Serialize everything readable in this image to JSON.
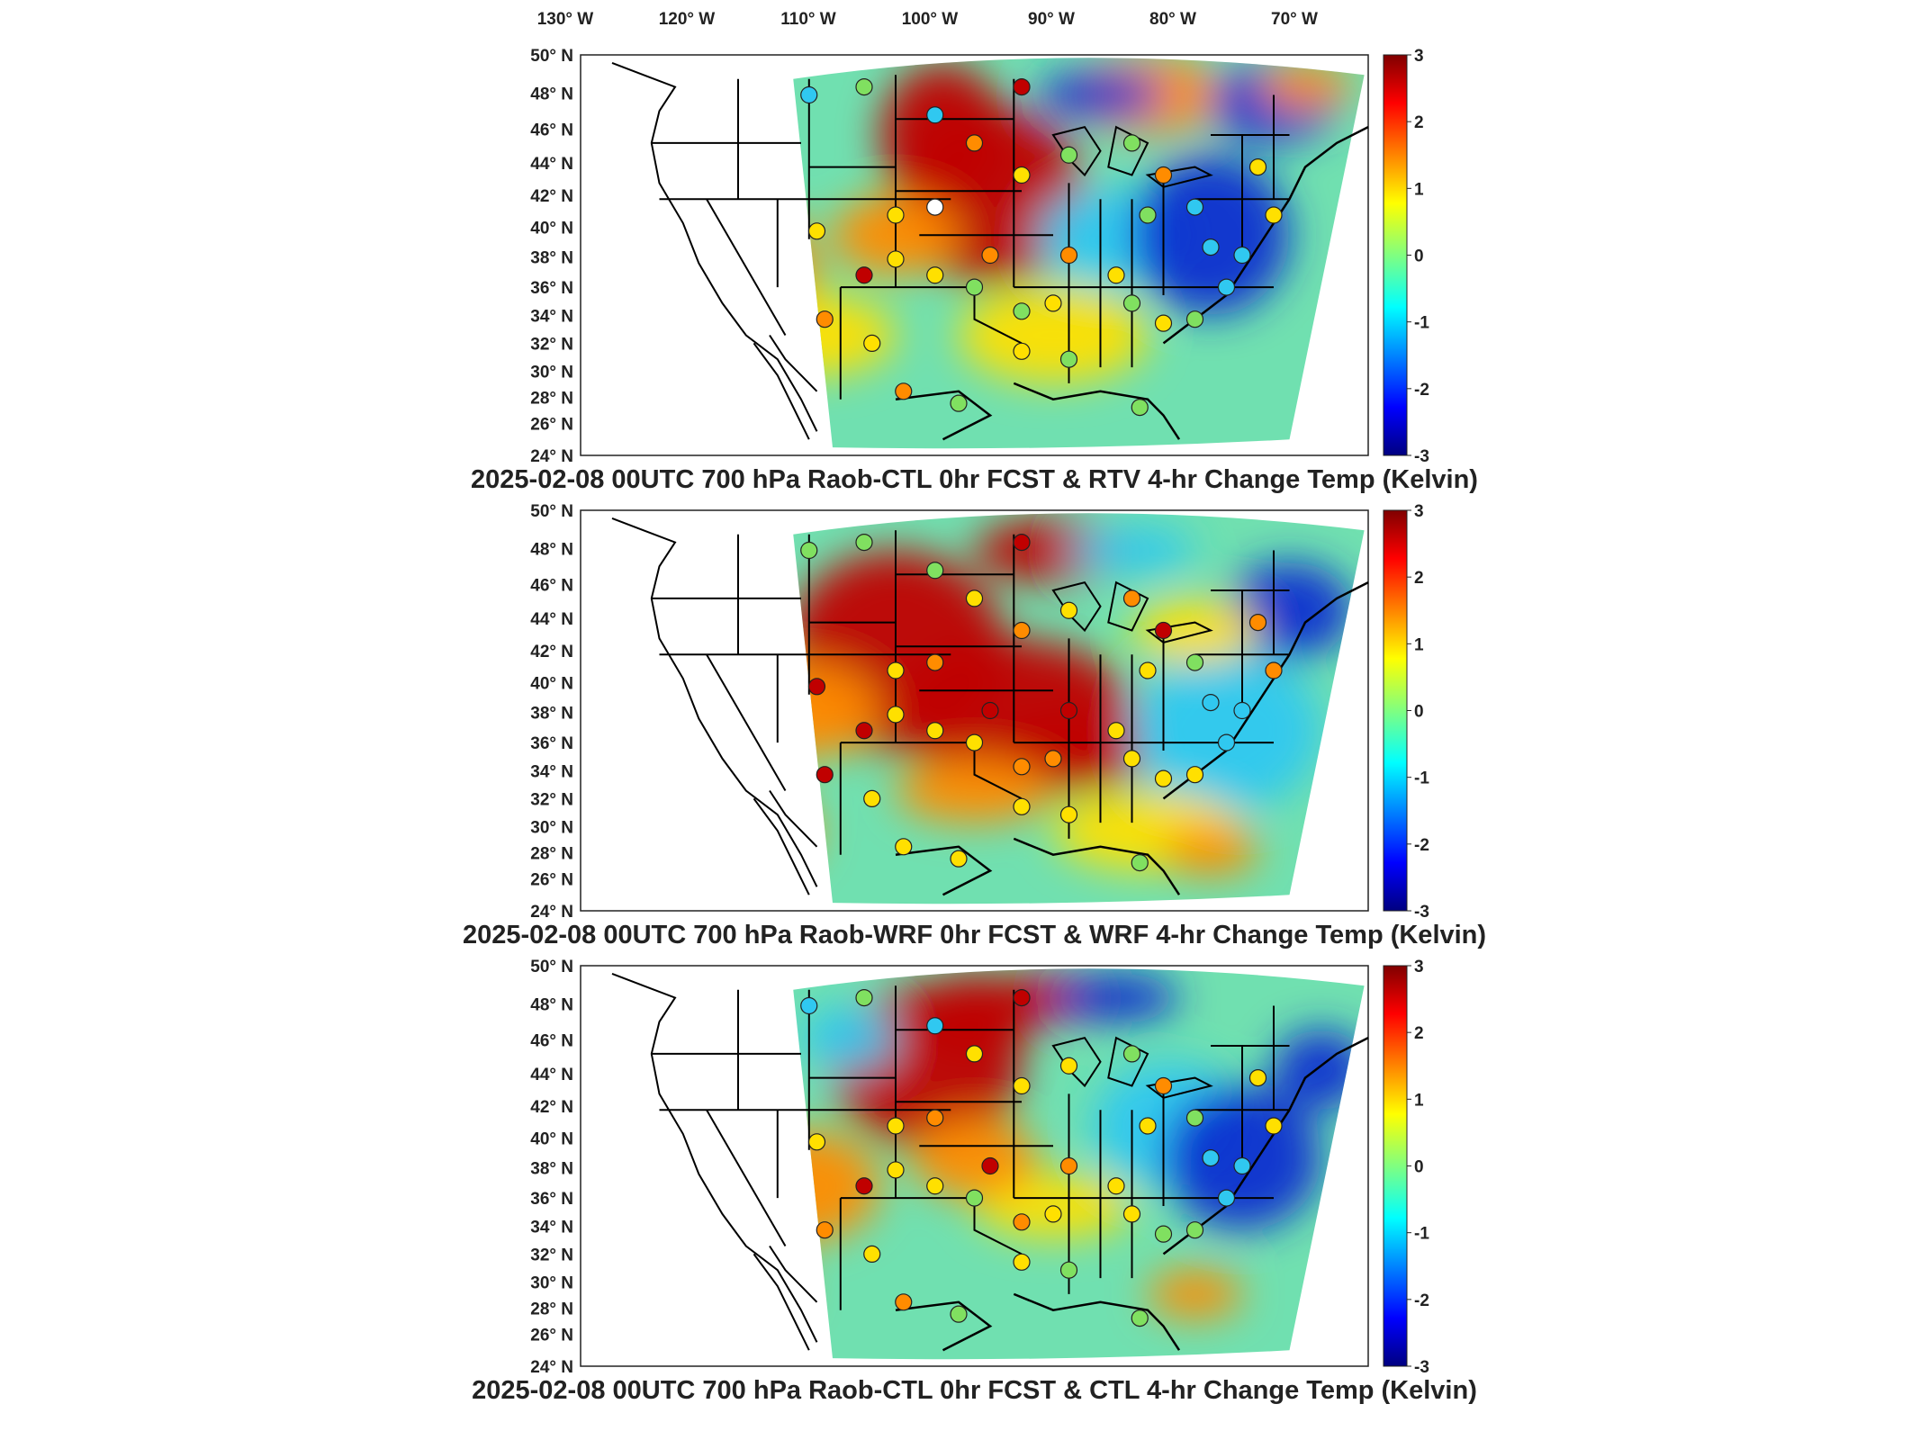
{
  "lon_labels": [
    "130° W",
    "120° W",
    "110° W",
    "100° W",
    "90° W",
    "80° W",
    "70° W"
  ],
  "lat_labels": [
    "50° N",
    "48° N",
    "46° N",
    "44° N",
    "42° N",
    "40° N",
    "38° N",
    "36° N",
    "34° N",
    "32° N",
    "30° N",
    "28° N",
    "26° N",
    "24° N"
  ],
  "colorbar": {
    "ticks": [
      "3",
      "2",
      "1",
      "0",
      "-1",
      "-2",
      "-3"
    ],
    "units": "Kelvin",
    "min": -3,
    "max": 3,
    "colormap": "jet"
  },
  "panels": [
    {
      "title": "2025-02-08 00UTC 700 hPa Raob-CTL 0hr FCST & RTV 4-hr Change Temp (Kelvin)"
    },
    {
      "title": "2025-02-08 00UTC 700 hPa Raob-WRF 0hr FCST & WRF 4-hr Change Temp (Kelvin)"
    },
    {
      "title": "2025-02-08 00UTC 700 hPa Raob-CTL 0hr FCST & CTL 4-hr Change Temp (Kelvin)"
    }
  ],
  "colors": {
    "warm": "#c00000",
    "orange": "#ff8c00",
    "yellow": "#ffe000",
    "green": "#80e060",
    "cyan": "#30c8f0",
    "blue": "#1030d0"
  }
}
